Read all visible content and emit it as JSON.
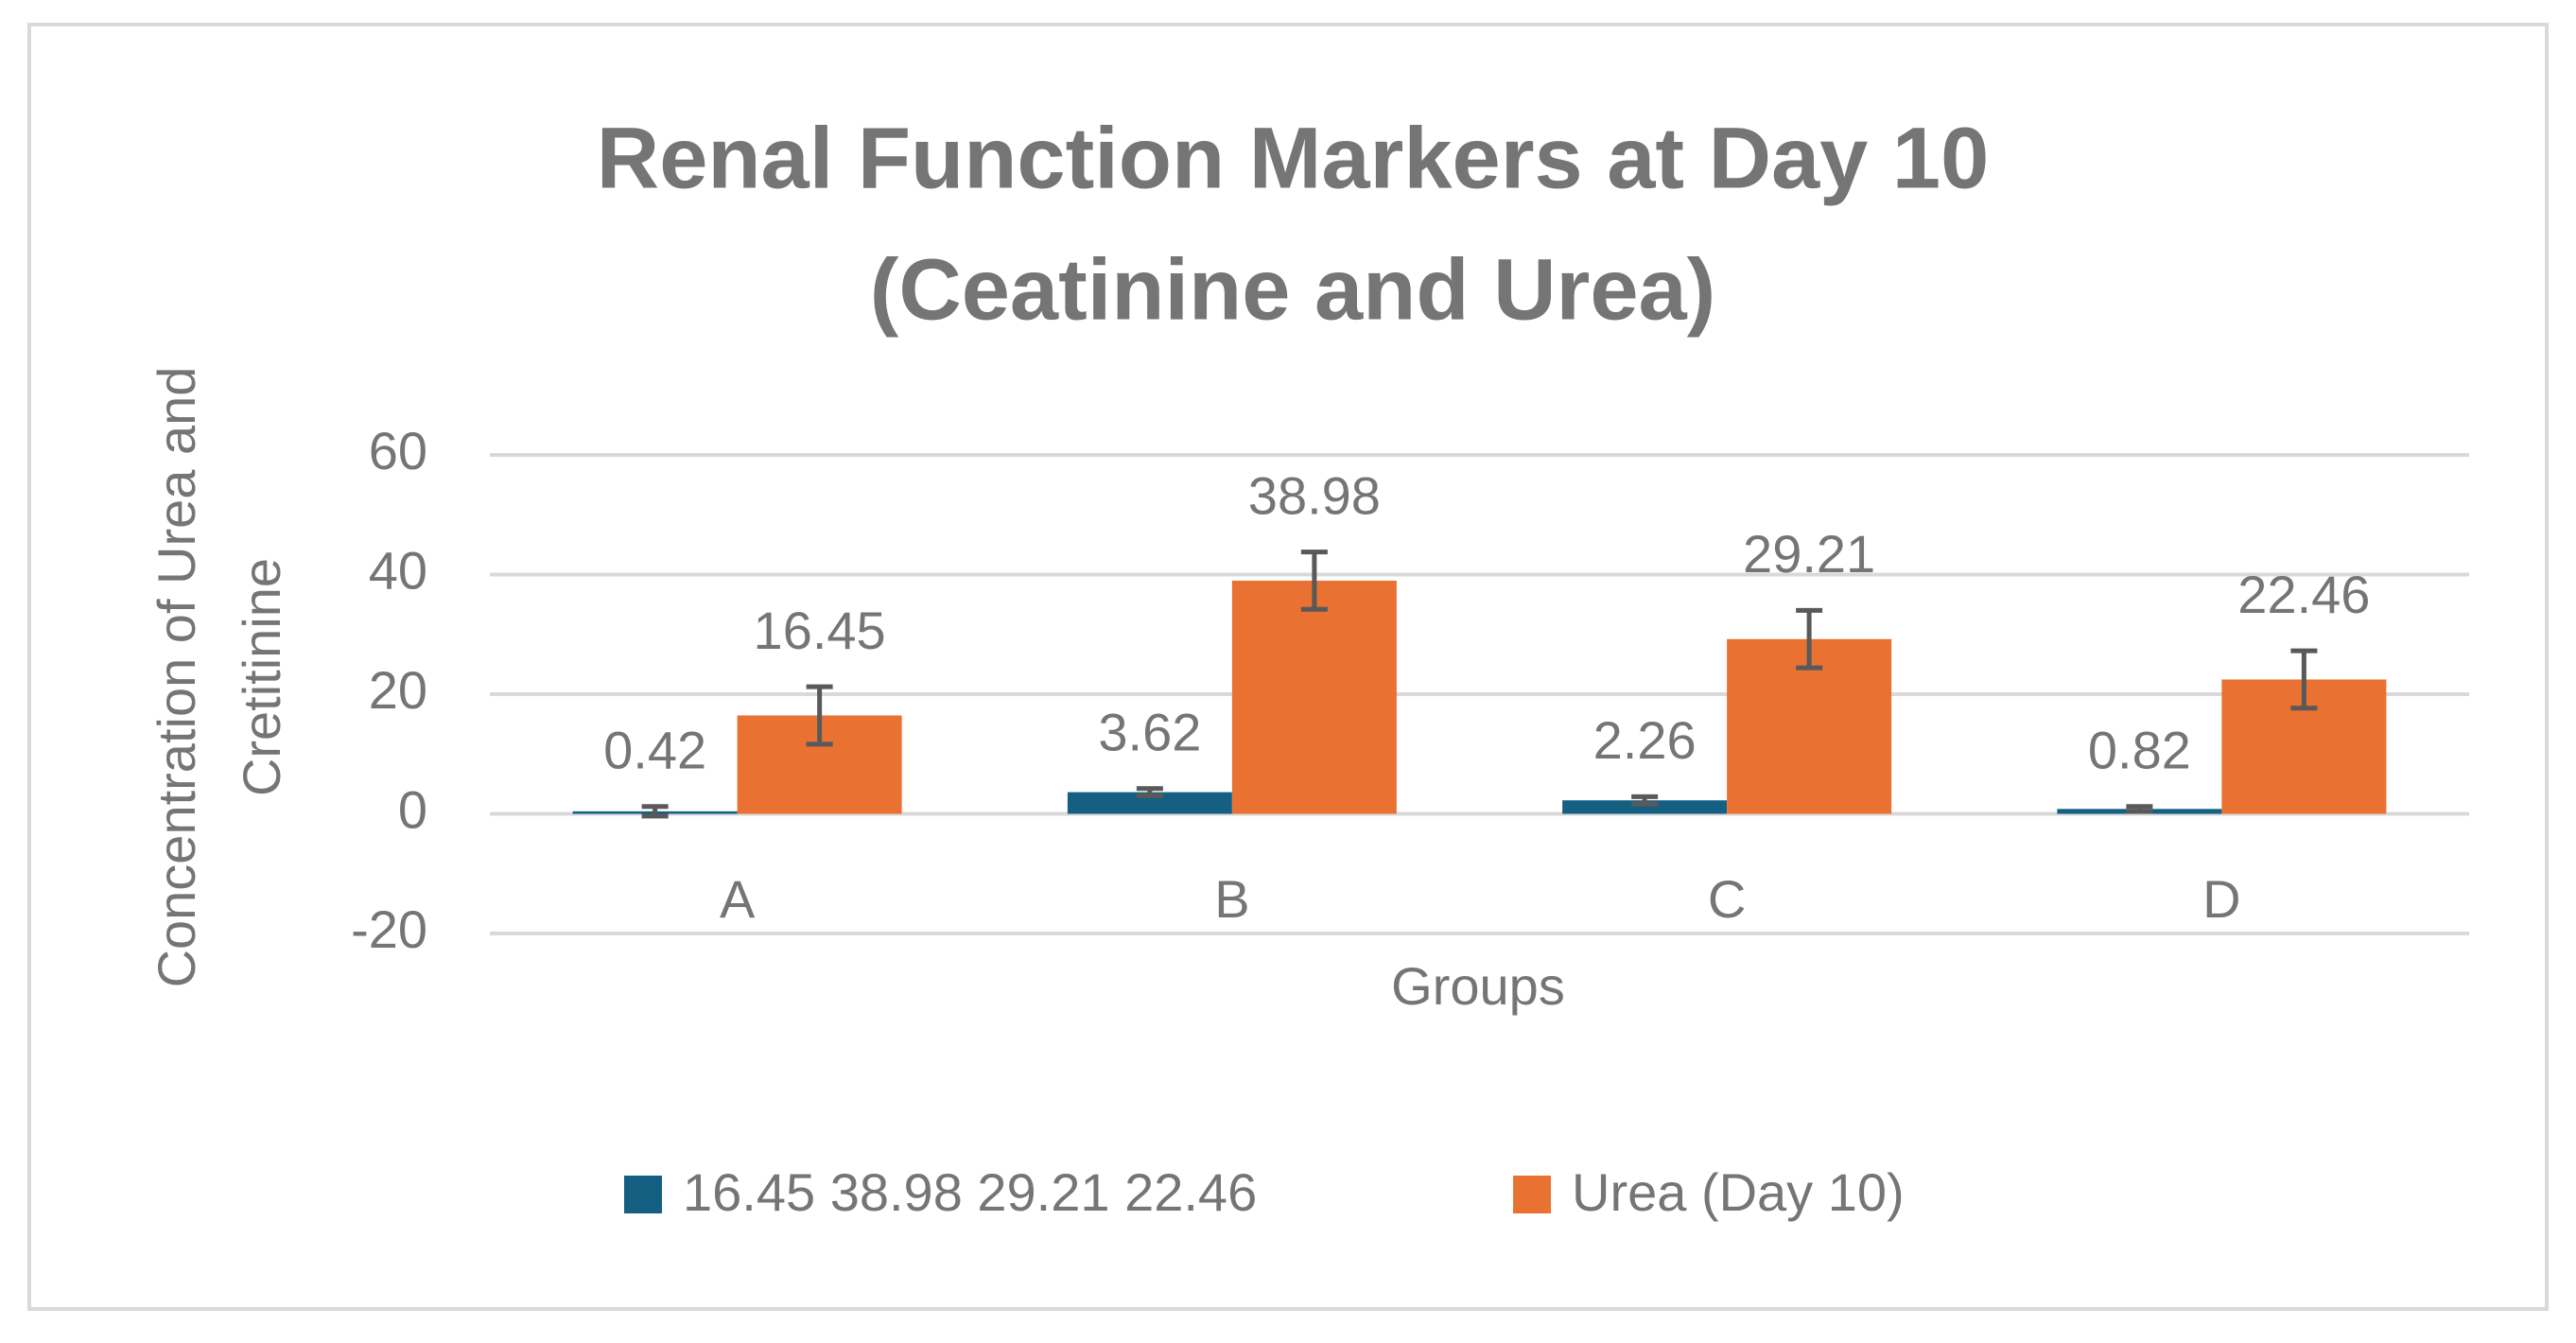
{
  "chart_data": {
    "type": "bar",
    "title": [
      "Renal Function Markers at Day 10",
      "(Ceatinine and Urea)"
    ],
    "x_label": "Groups",
    "y_label": [
      "Concentration of Urea and",
      "Cretitinine"
    ],
    "categories": [
      "A",
      "B",
      "C",
      "D"
    ],
    "series": [
      {
        "name": "16.45 38.98 29.21 22.46",
        "color": "#156082",
        "values": [
          0.42,
          3.62,
          2.26,
          0.82
        ],
        "errors": [
          0.8,
          0.6,
          0.6,
          0.4
        ]
      },
      {
        "name": "Urea (Day 10)",
        "color": "#E97132",
        "values": [
          16.45,
          38.98,
          29.21,
          22.46
        ],
        "errors": [
          4.8,
          4.8,
          4.8,
          4.8
        ]
      }
    ],
    "ylim": [
      -20,
      60
    ],
    "yticks": [
      -20,
      0,
      20,
      40,
      60
    ],
    "grid": true,
    "legend": "bottom"
  }
}
